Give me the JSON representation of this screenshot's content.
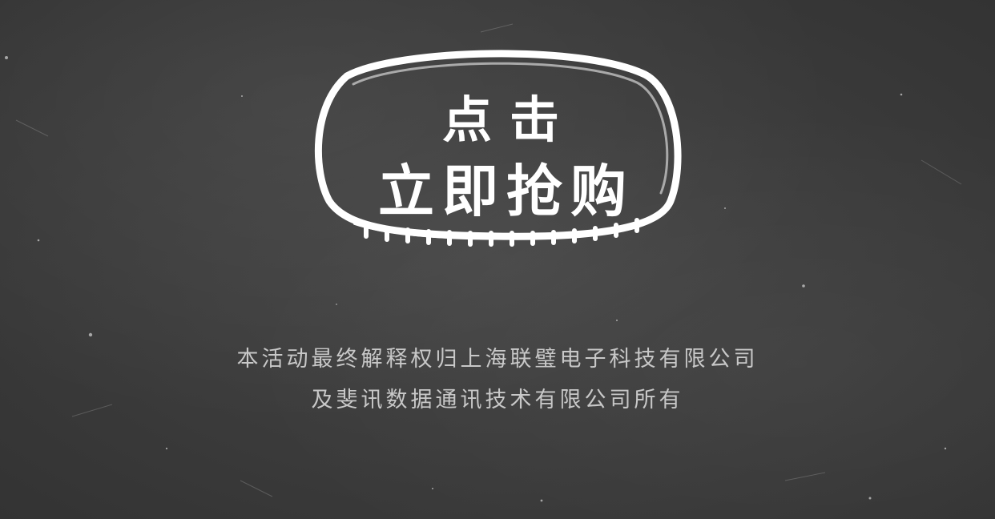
{
  "cta": {
    "line1": "点击",
    "line2": "立即抢购"
  },
  "disclaimer": {
    "line1": "本活动最终解释权归上海联璧电子科技有限公司",
    "line2": "及斐讯数据通讯技术有限公司所有"
  },
  "colors": {
    "background": "#3d3d3d",
    "chalk": "#ffffff",
    "disclaimer_text": "#c8c8c8"
  }
}
